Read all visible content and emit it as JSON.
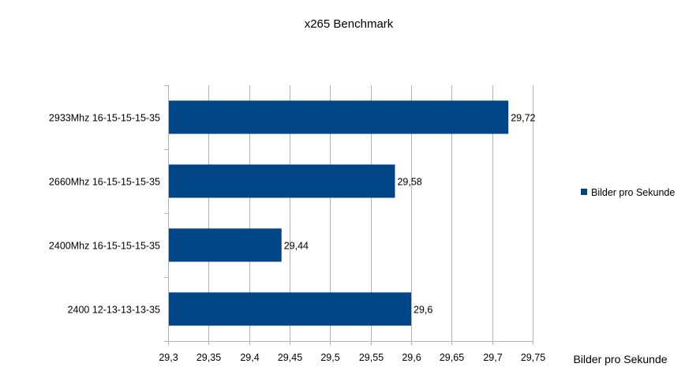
{
  "chart_data": {
    "type": "bar",
    "orientation": "horizontal",
    "title": "x265 Benchmark",
    "xlabel": "Bilder pro Sekunde",
    "ylabel": "",
    "categories": [
      "2933Mhz 16-15-15-15-35",
      "2660Mhz 16-15-15-15-35",
      "2400Mhz 16-15-15-15-35",
      "2400 12-13-13-13-35"
    ],
    "series": [
      {
        "name": "Bilder pro Sekunde",
        "values": [
          29.72,
          29.58,
          29.44,
          29.6
        ],
        "value_labels": [
          "29,72",
          "29,58",
          "29,44",
          "29,6"
        ],
        "color": "#004586"
      }
    ],
    "xlim": [
      29.3,
      29.75
    ],
    "x_ticks": [
      29.3,
      29.35,
      29.4,
      29.45,
      29.5,
      29.55,
      29.6,
      29.65,
      29.7,
      29.75
    ],
    "x_tick_labels": [
      "29,3",
      "29,35",
      "29,4",
      "29,45",
      "29,5",
      "29,55",
      "29,6",
      "29,65",
      "29,7",
      "29,75"
    ],
    "grid": true,
    "legend_position": "right",
    "colors": {
      "bar": "#004586",
      "grid": "#b3b3b3"
    }
  }
}
